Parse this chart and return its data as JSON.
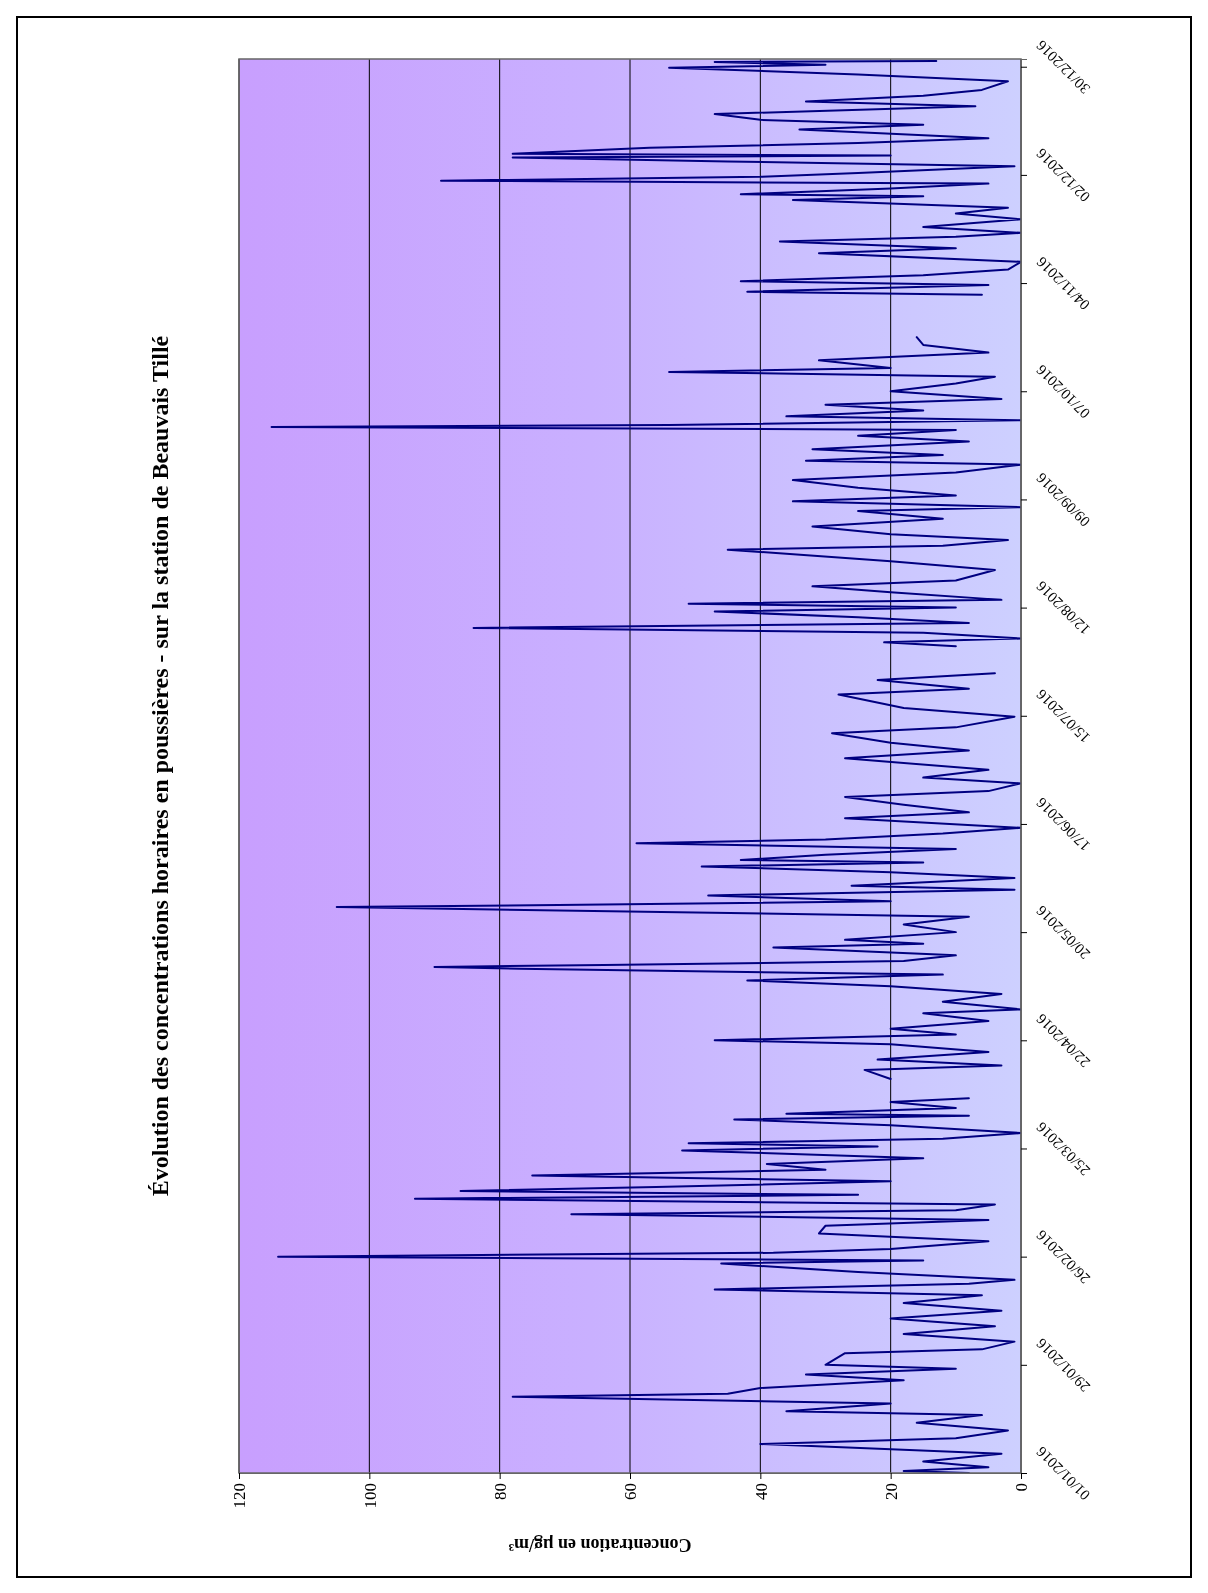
{
  "chart_data": {
    "type": "line",
    "orientation": "horizontal",
    "title": "Évolution des concentrations horaires en poussières - sur la station de Beauvais Tillé",
    "xlabel": "Concentration en µg/m³",
    "ylim": [
      "2016-01-01",
      "2017-01-01"
    ],
    "yticks": [
      {
        "value": "2016-01-01",
        "label": "01/01/2016"
      },
      {
        "value": "2016-01-29",
        "label": "29/01/2016"
      },
      {
        "value": "2016-02-26",
        "label": "26/02/2016"
      },
      {
        "value": "2016-03-25",
        "label": "25/03/2016"
      },
      {
        "value": "2016-04-22",
        "label": "22/04/2016"
      },
      {
        "value": "2016-05-20",
        "label": "20/05/2016"
      },
      {
        "value": "2016-06-17",
        "label": "17/06/2016"
      },
      {
        "value": "2016-07-15",
        "label": "15/07/2016"
      },
      {
        "value": "2016-08-12",
        "label": "12/08/2016"
      },
      {
        "value": "2016-09-09",
        "label": "09/09/2016"
      },
      {
        "value": "2016-10-07",
        "label": "07/10/2016"
      },
      {
        "value": "2016-11-04",
        "label": "04/11/2016"
      },
      {
        "value": "2016-12-02",
        "label": "02/12/2016"
      },
      {
        "value": "2016-12-30",
        "label": "30/12/2016"
      }
    ],
    "xlim": [
      120,
      0
    ],
    "xticks": [
      120,
      100,
      80,
      60,
      40,
      20,
      0
    ],
    "grid": "x",
    "marker": "none",
    "line_style": "solid",
    "x": [
      "2016-01-01",
      "2016-01-01T12:00",
      "2016-01-02T12:00",
      "2016-01-04",
      "2016-01-06",
      "2016-01-08T12:00",
      "2016-01-10",
      "2016-01-12",
      "2016-01-14",
      "2016-01-16",
      "2016-01-17",
      "2016-01-19",
      "2016-01-20T18:00",
      "2016-01-21T12:00",
      "2016-01-23",
      "2016-01-25",
      "2016-01-26T12:00",
      "2016-01-28",
      "2016-01-29",
      "2016-02-01",
      "2016-02-02",
      "2016-02-04",
      "2016-02-06",
      "2016-02-08",
      "2016-02-10",
      "2016-02-12",
      "2016-02-14",
      "2016-02-16",
      "2016-02-17T12:00",
      "2016-02-19",
      "2016-02-20",
      "2016-02-22",
      "2016-02-24T06:00",
      "2016-02-25",
      "2016-02-26",
      "2016-02-27",
      "2016-02-28",
      "2016-03-01",
      "2016-03-03",
      "2016-03-05",
      "2016-03-06T12:00",
      "2016-03-08",
      "2016-03-09",
      "2016-03-10T12:00",
      "2016-03-12",
      "2016-03-13",
      "2016-03-14",
      "2016-03-15",
      "2016-03-16T12:00",
      "2016-03-18",
      "2016-03-19T12:00",
      "2016-03-21",
      "2016-03-22T12:00",
      "2016-03-24T12:00",
      "2016-03-25T12:00",
      "2016-03-26T08:00",
      "2016-03-27T12:00",
      "2016-03-29",
      "2016-03-31",
      "2016-04-01T12:00",
      "2016-04-02T12:00",
      "2016-04-03",
      "2016-04-04T12:00",
      "2016-04-06",
      "2016-04-07",
      "2016-04-09",
      "2016-04-12",
      "2016-04-14T08:00",
      "2016-04-15T12:00",
      "2016-04-17",
      "2016-04-19",
      "2016-04-21",
      "2016-04-22",
      "2016-04-23T12:00",
      "2016-04-25",
      "2016-04-27",
      "2016-04-29",
      "2016-04-30",
      "2016-05-02",
      "2016-05-04",
      "2016-05-06",
      "2016-05-07T12:00",
      "2016-05-09",
      "2016-05-10T12:00",
      "2016-05-11",
      "2016-05-11T12:00",
      "2016-05-12T12:00",
      "2016-05-14",
      "2016-05-16",
      "2016-05-17",
      "2016-05-18",
      "2016-05-20",
      "2016-05-22",
      "2016-05-24",
      "2016-05-26T12:00",
      "2016-05-27",
      "2016-05-28",
      "2016-05-29T12:00",
      "2016-05-31",
      "2016-06-01",
      "2016-06-03",
      "2016-06-04T12:00",
      "2016-06-06",
      "2016-06-07",
      "2016-06-07T16:00",
      "2016-06-09",
      "2016-06-10T12:00",
      "2016-06-12",
      "2016-06-13",
      "2016-06-14T12:00",
      "2016-06-16",
      "2016-06-18T12:00",
      "2016-06-20",
      "2016-06-22",
      "2016-06-24",
      "2016-06-25T12:00",
      "2016-06-27T12:00",
      "2016-06-29",
      "2016-07-01",
      "2016-07-04",
      "2016-07-06",
      "2016-07-08",
      "2016-07-10T12:00",
      "2016-07-12",
      "2016-07-14T18:00",
      "2016-07-17",
      "2016-07-20T12:00",
      "2016-07-22",
      "2016-07-24T06:00",
      "2016-07-26",
      "2016-07-29",
      "2016-08-02",
      "2016-08-03",
      "2016-08-04",
      "2016-08-05T12:00",
      "2016-08-06T18:00",
      "2016-08-08",
      "2016-08-09T12:00",
      "2016-08-11",
      "2016-08-12",
      "2016-08-13",
      "2016-08-14",
      "2016-08-16",
      "2016-08-17T12:00",
      "2016-08-19",
      "2016-08-21T18:00",
      "2016-08-24",
      "2016-08-27",
      "2016-08-28",
      "2016-08-29T12:00",
      "2016-08-31",
      "2016-09-02",
      "2016-09-04",
      "2016-09-06",
      "2016-09-07",
      "2016-09-08T12:00",
      "2016-09-10",
      "2016-09-12",
      "2016-09-14",
      "2016-09-16",
      "2016-09-18",
      "2016-09-19",
      "2016-09-20T12:00",
      "2016-09-22",
      "2016-09-24",
      "2016-09-25T12:00",
      "2016-09-27",
      "2016-09-27T18:00",
      "2016-09-28T06:00",
      "2016-09-29T12:00",
      "2016-09-30T12:00",
      "2016-10-02",
      "2016-10-03T12:00",
      "2016-10-05",
      "2016-10-07",
      "2016-10-09",
      "2016-10-10T18:00",
      "2016-10-12",
      "2016-10-13",
      "2016-10-15",
      "2016-10-17",
      "2016-10-19",
      "2016-10-21",
      "2016-10-26",
      "2016-11-01",
      "2016-11-01T18:00",
      "2016-11-03T12:00",
      "2016-11-04T12:00",
      "2016-11-06",
      "2016-11-07T12:00",
      "2016-11-09T12:00",
      "2016-11-11T18:00",
      "2016-11-13",
      "2016-11-14T18:00",
      "2016-11-16",
      "2016-11-17",
      "2016-11-18T12:00",
      "2016-11-20T12:00",
      "2016-11-22",
      "2016-11-23T12:00",
      "2016-11-25T12:00",
      "2016-11-26T12:00",
      "2016-11-27",
      "2016-11-28T12:00",
      "2016-11-29T18:00",
      "2016-11-30T12:00",
      "2016-12-01T12:00",
      "2016-12-02T12:00",
      "2016-12-04T06:00",
      "2016-12-05T12:00",
      "2016-12-06T12:00",
      "2016-12-07",
      "2016-12-07T12:00",
      "2016-12-09",
      "2016-12-10T06:00",
      "2016-12-11T12:00",
      "2016-12-13T18:00",
      "2016-12-15",
      "2016-12-16T06:00",
      "2016-12-17T18:00",
      "2016-12-19T18:00",
      "2016-12-21",
      "2016-12-22T12:00",
      "2016-12-24",
      "2016-12-26T06:00",
      "2016-12-28",
      "2016-12-29T18:00",
      "2016-12-30T12:00",
      "2016-12-31T06:00",
      "2016-12-31T12:00"
    ],
    "series": [
      {
        "color": "#000080",
        "values": [
          8,
          18,
          5,
          15,
          3,
          40,
          10,
          2,
          16,
          6,
          36,
          20,
          78,
          45,
          40,
          18,
          33,
          10,
          30,
          27,
          6,
          1,
          18,
          4,
          20,
          3,
          18,
          6,
          47,
          8,
          1,
          25,
          46,
          15,
          114,
          38,
          20,
          5,
          31,
          30,
          5,
          69,
          10,
          4,
          93,
          25,
          86,
          56,
          20,
          75,
          30,
          39,
          15,
          52,
          22,
          51,
          12,
          0,
          20,
          44,
          8,
          36,
          10,
          20,
          8,
          null,
          20,
          24,
          3,
          22,
          5,
          20,
          47,
          10,
          20,
          5,
          15,
          0,
          12,
          3,
          20,
          42,
          12,
          77,
          90,
          64,
          18,
          10,
          38,
          15,
          27,
          10,
          18,
          8,
          105,
          71,
          20,
          48,
          1,
          26,
          1,
          20,
          49,
          15,
          43,
          30,
          10,
          59,
          30,
          12,
          0,
          27,
          8,
          18,
          27,
          5,
          0,
          15,
          5,
          27,
          8,
          20,
          29,
          10,
          1,
          18,
          28,
          8,
          22,
          4,
          null,
          10,
          21,
          0,
          15,
          84,
          8,
          25,
          47,
          10,
          51,
          3,
          20,
          32,
          10,
          4,
          20,
          45,
          12,
          2,
          20,
          32,
          12,
          25,
          0,
          35,
          10,
          25,
          35,
          10,
          0,
          33,
          12,
          32,
          8,
          25,
          10,
          115,
          54,
          0,
          36,
          15,
          30,
          3,
          20,
          10,
          4,
          54,
          20,
          31,
          5,
          15,
          16,
          null,
          6,
          42,
          5,
          43,
          15,
          2,
          0,
          31,
          10,
          37,
          10,
          0,
          15,
          0,
          10,
          2,
          35,
          15,
          43,
          20,
          5,
          89,
          40,
          25,
          1,
          45,
          78,
          20,
          78,
          57,
          25,
          5,
          34,
          15,
          40,
          47,
          7,
          33,
          15,
          6,
          2,
          25,
          54,
          30,
          47,
          13
        ]
      }
    ]
  }
}
